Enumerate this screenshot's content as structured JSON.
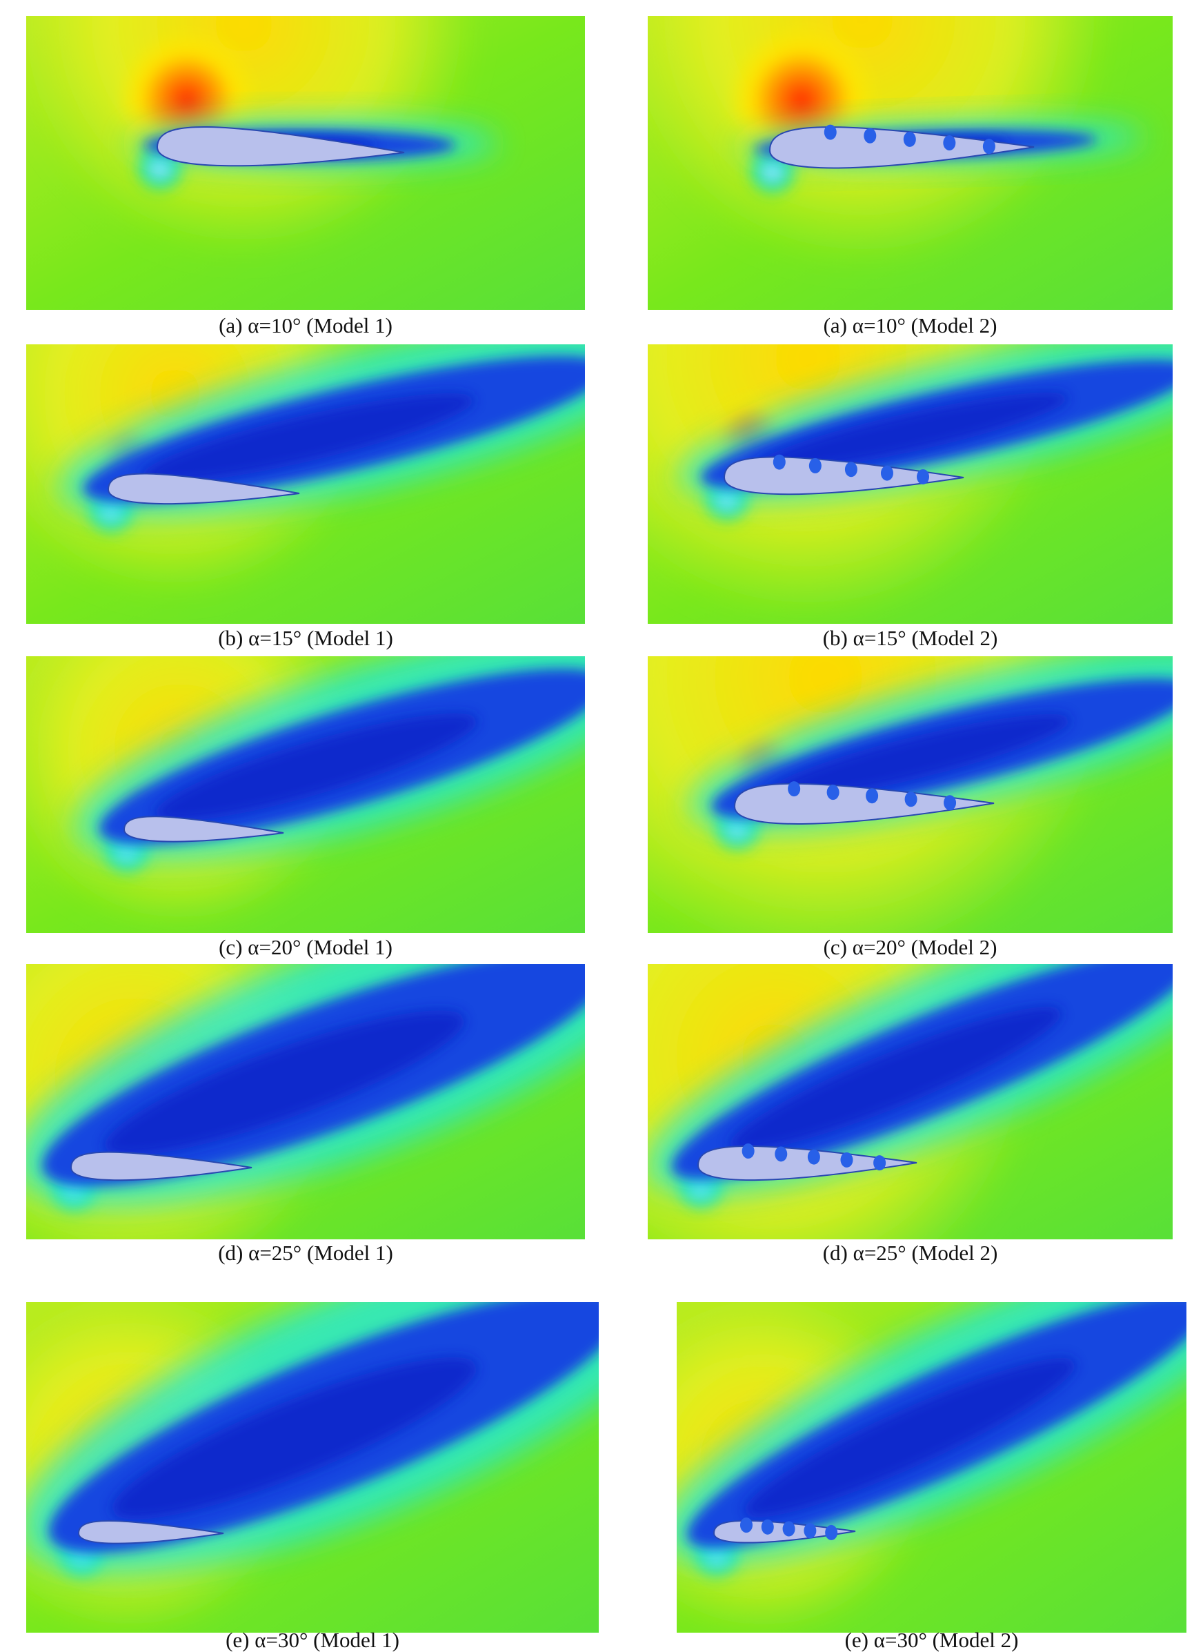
{
  "captions": [
    "(a) α=10° (Model 1)",
    "(a) α=10° (Model 2)",
    "(b) α=15° (Model 1)",
    "(b) α=15° (Model 2)",
    "(c) α=20° (Model 1)",
    "(c) α=20° (Model 2)",
    "(d) α=25° (Model 1)",
    "(d) α=25° (Model 2)",
    "(e) α=30° (Model 1)",
    "(e) α=30° (Model 2)"
  ]
}
